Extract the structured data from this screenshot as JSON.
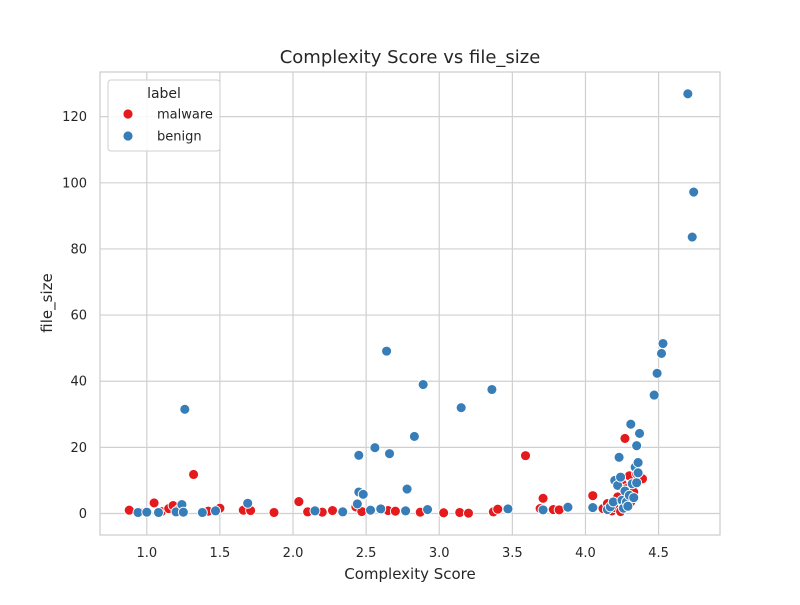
{
  "chart_data": {
    "type": "scatter",
    "title": "Complexity Score vs file_size",
    "xlabel": "Complexity Score",
    "ylabel": "file_size",
    "xlim": [
      0.68,
      4.92
    ],
    "ylim": [
      -6.5,
      133.5
    ],
    "xticks": [
      1.0,
      1.5,
      2.0,
      2.5,
      3.0,
      3.5,
      4.0,
      4.5
    ],
    "xtick_labels": [
      "1.0",
      "1.5",
      "2.0",
      "2.5",
      "3.0",
      "3.5",
      "4.0",
      "4.5"
    ],
    "yticks": [
      0,
      20,
      40,
      60,
      80,
      100,
      120
    ],
    "ytick_labels": [
      "0",
      "20",
      "40",
      "60",
      "80",
      "100",
      "120"
    ],
    "grid": true,
    "legend": {
      "title": "label",
      "position": "top-left"
    },
    "series": [
      {
        "name": "malware",
        "color": "#e41a1c",
        "points": [
          [
            0.88,
            1.0
          ],
          [
            0.95,
            0.4
          ],
          [
            1.05,
            3.2
          ],
          [
            1.1,
            0.6
          ],
          [
            1.15,
            1.5
          ],
          [
            1.18,
            2.4
          ],
          [
            1.22,
            1.2
          ],
          [
            1.32,
            11.8
          ],
          [
            1.42,
            0.7
          ],
          [
            1.5,
            1.6
          ],
          [
            1.66,
            1.0
          ],
          [
            1.71,
            0.9
          ],
          [
            1.87,
            0.3
          ],
          [
            2.04,
            3.6
          ],
          [
            2.1,
            0.5
          ],
          [
            2.2,
            0.4
          ],
          [
            2.27,
            0.9
          ],
          [
            2.43,
            2.0
          ],
          [
            2.47,
            0.6
          ],
          [
            2.65,
            0.9
          ],
          [
            2.7,
            0.7
          ],
          [
            2.87,
            0.4
          ],
          [
            3.03,
            0.2
          ],
          [
            3.14,
            0.3
          ],
          [
            3.2,
            0.1
          ],
          [
            3.37,
            0.5
          ],
          [
            3.4,
            1.3
          ],
          [
            3.59,
            17.5
          ],
          [
            3.69,
            1.5
          ],
          [
            3.71,
            4.6
          ],
          [
            3.78,
            1.2
          ],
          [
            3.82,
            1.1
          ],
          [
            4.05,
            5.4
          ],
          [
            4.12,
            1.5
          ],
          [
            4.15,
            3.0
          ],
          [
            4.18,
            0.8
          ],
          [
            4.2,
            1.8
          ],
          [
            4.22,
            5.0
          ],
          [
            4.24,
            0.6
          ],
          [
            4.25,
            9.0
          ],
          [
            4.26,
            2.3
          ],
          [
            4.27,
            22.7
          ],
          [
            4.28,
            7.5
          ],
          [
            4.3,
            11.4
          ],
          [
            4.31,
            3.5
          ],
          [
            4.33,
            6.5
          ],
          [
            4.35,
            12.0
          ],
          [
            4.39,
            10.5
          ]
        ]
      },
      {
        "name": "benign",
        "color": "#377eb8",
        "points": [
          [
            0.94,
            0.3
          ],
          [
            1.0,
            0.4
          ],
          [
            1.08,
            0.3
          ],
          [
            1.2,
            0.5
          ],
          [
            1.24,
            2.7
          ],
          [
            1.26,
            31.5
          ],
          [
            1.25,
            0.4
          ],
          [
            1.38,
            0.3
          ],
          [
            1.47,
            0.8
          ],
          [
            1.69,
            3.1
          ],
          [
            2.15,
            0.8
          ],
          [
            2.34,
            0.5
          ],
          [
            2.45,
            17.6
          ],
          [
            2.45,
            6.5
          ],
          [
            2.48,
            5.8
          ],
          [
            2.44,
            2.9
          ],
          [
            2.53,
            1.0
          ],
          [
            2.56,
            19.9
          ],
          [
            2.6,
            1.4
          ],
          [
            2.64,
            49.1
          ],
          [
            2.66,
            18.1
          ],
          [
            2.77,
            0.8
          ],
          [
            2.78,
            7.4
          ],
          [
            2.83,
            23.3
          ],
          [
            2.89,
            39.0
          ],
          [
            2.92,
            1.2
          ],
          [
            3.15,
            32.0
          ],
          [
            3.36,
            37.5
          ],
          [
            3.47,
            1.4
          ],
          [
            3.71,
            1.1
          ],
          [
            3.88,
            1.9
          ],
          [
            4.05,
            1.8
          ],
          [
            4.15,
            1.2
          ],
          [
            4.17,
            2.0
          ],
          [
            4.19,
            3.5
          ],
          [
            4.2,
            10.0
          ],
          [
            4.22,
            8.5
          ],
          [
            4.24,
            11.0
          ],
          [
            4.23,
            17.0
          ],
          [
            4.25,
            4.0
          ],
          [
            4.26,
            1.6
          ],
          [
            4.27,
            6.8
          ],
          [
            4.28,
            3.5
          ],
          [
            4.29,
            2.2
          ],
          [
            4.3,
            5.5
          ],
          [
            4.31,
            27.0
          ],
          [
            4.32,
            9.0
          ],
          [
            4.33,
            4.8
          ],
          [
            4.34,
            14.0
          ],
          [
            4.35,
            20.5
          ],
          [
            4.36,
            12.3
          ],
          [
            4.37,
            24.2
          ],
          [
            4.35,
            9.3
          ],
          [
            4.36,
            15.4
          ],
          [
            4.47,
            35.8
          ],
          [
            4.49,
            42.4
          ],
          [
            4.52,
            48.4
          ],
          [
            4.53,
            51.4
          ],
          [
            4.7,
            126.9
          ],
          [
            4.73,
            83.6
          ],
          [
            4.74,
            97.2
          ]
        ]
      }
    ]
  }
}
